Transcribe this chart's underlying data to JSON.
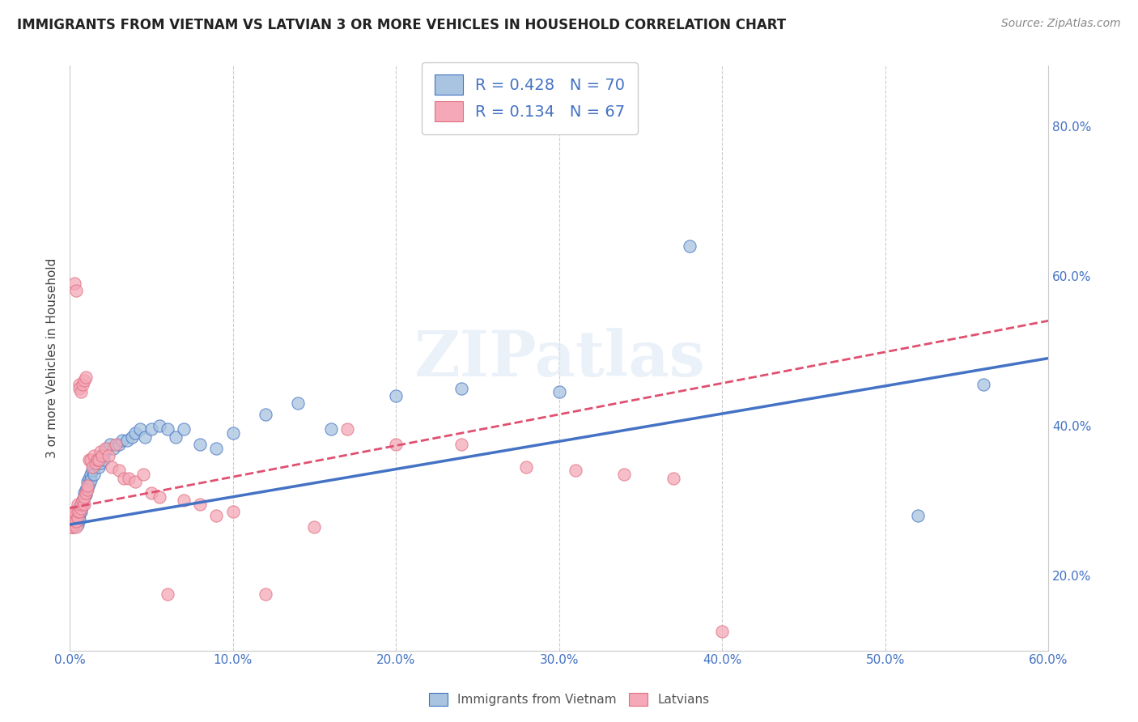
{
  "title": "IMMIGRANTS FROM VIETNAM VS LATVIAN 3 OR MORE VEHICLES IN HOUSEHOLD CORRELATION CHART",
  "source": "Source: ZipAtlas.com",
  "ylabel": "3 or more Vehicles in Household",
  "yaxis_ticks": [
    "20.0%",
    "40.0%",
    "60.0%",
    "80.0%"
  ],
  "yaxis_tick_vals": [
    0.2,
    0.4,
    0.6,
    0.8
  ],
  "xlim": [
    0.0,
    0.6
  ],
  "ylim": [
    0.1,
    0.88
  ],
  "r_vietnam": 0.428,
  "n_vietnam": 70,
  "r_latvian": 0.134,
  "n_latvian": 67,
  "legend_label_vietnam": "Immigrants from Vietnam",
  "legend_label_latvian": "Latvians",
  "color_vietnam": "#a8c4e0",
  "color_latvian": "#f4a8b8",
  "color_vietnam_line": "#4472c4",
  "color_latvian_line": "#e05070",
  "color_text_blue": "#4472c4",
  "watermark": "ZIPatlas",
  "background_color": "#ffffff",
  "scatter_vietnam_x": [
    0.001,
    0.001,
    0.002,
    0.002,
    0.002,
    0.003,
    0.003,
    0.003,
    0.003,
    0.004,
    0.004,
    0.004,
    0.005,
    0.005,
    0.005,
    0.006,
    0.006,
    0.006,
    0.007,
    0.007,
    0.007,
    0.008,
    0.008,
    0.009,
    0.009,
    0.01,
    0.01,
    0.011,
    0.011,
    0.012,
    0.012,
    0.013,
    0.013,
    0.014,
    0.015,
    0.015,
    0.016,
    0.017,
    0.018,
    0.019,
    0.02,
    0.021,
    0.022,
    0.023,
    0.025,
    0.027,
    0.03,
    0.032,
    0.035,
    0.038,
    0.04,
    0.043,
    0.046,
    0.05,
    0.055,
    0.06,
    0.065,
    0.07,
    0.08,
    0.09,
    0.1,
    0.12,
    0.14,
    0.16,
    0.2,
    0.24,
    0.3,
    0.38,
    0.52,
    0.56
  ],
  "scatter_vietnam_y": [
    0.275,
    0.268,
    0.27,
    0.265,
    0.28,
    0.275,
    0.268,
    0.272,
    0.285,
    0.27,
    0.28,
    0.275,
    0.268,
    0.278,
    0.288,
    0.282,
    0.292,
    0.275,
    0.29,
    0.285,
    0.295,
    0.3,
    0.295,
    0.31,
    0.305,
    0.315,
    0.308,
    0.325,
    0.318,
    0.33,
    0.322,
    0.335,
    0.328,
    0.34,
    0.345,
    0.335,
    0.35,
    0.355,
    0.345,
    0.35,
    0.36,
    0.355,
    0.365,
    0.37,
    0.375,
    0.37,
    0.375,
    0.38,
    0.38,
    0.385,
    0.39,
    0.395,
    0.385,
    0.395,
    0.4,
    0.395,
    0.385,
    0.395,
    0.375,
    0.37,
    0.39,
    0.415,
    0.43,
    0.395,
    0.44,
    0.45,
    0.445,
    0.64,
    0.28,
    0.455
  ],
  "scatter_latvian_x": [
    0.001,
    0.001,
    0.001,
    0.002,
    0.002,
    0.002,
    0.002,
    0.003,
    0.003,
    0.003,
    0.003,
    0.004,
    0.004,
    0.004,
    0.005,
    0.005,
    0.005,
    0.006,
    0.006,
    0.006,
    0.007,
    0.007,
    0.007,
    0.008,
    0.008,
    0.009,
    0.009,
    0.009,
    0.01,
    0.01,
    0.011,
    0.011,
    0.012,
    0.013,
    0.014,
    0.015,
    0.016,
    0.017,
    0.018,
    0.019,
    0.02,
    0.022,
    0.024,
    0.026,
    0.028,
    0.03,
    0.033,
    0.036,
    0.04,
    0.045,
    0.05,
    0.055,
    0.06,
    0.07,
    0.08,
    0.09,
    0.1,
    0.12,
    0.15,
    0.17,
    0.2,
    0.24,
    0.28,
    0.31,
    0.34,
    0.37,
    0.4
  ],
  "scatter_latvian_y": [
    0.265,
    0.272,
    0.28,
    0.268,
    0.275,
    0.282,
    0.265,
    0.278,
    0.285,
    0.272,
    0.59,
    0.265,
    0.58,
    0.272,
    0.278,
    0.285,
    0.295,
    0.455,
    0.45,
    0.285,
    0.445,
    0.29,
    0.295,
    0.3,
    0.455,
    0.295,
    0.46,
    0.305,
    0.31,
    0.465,
    0.315,
    0.32,
    0.355,
    0.355,
    0.345,
    0.36,
    0.35,
    0.355,
    0.355,
    0.365,
    0.36,
    0.37,
    0.36,
    0.345,
    0.375,
    0.34,
    0.33,
    0.33,
    0.325,
    0.335,
    0.31,
    0.305,
    0.175,
    0.3,
    0.295,
    0.28,
    0.285,
    0.175,
    0.265,
    0.395,
    0.375,
    0.375,
    0.345,
    0.34,
    0.335,
    0.33,
    0.125
  ],
  "line_vietnam_x0": 0.0,
  "line_vietnam_y0": 0.268,
  "line_vietnam_x1": 0.6,
  "line_vietnam_y1": 0.49,
  "line_latvian_x0": 0.0,
  "line_latvian_y0": 0.29,
  "line_latvian_x1": 0.6,
  "line_latvian_y1": 0.54
}
